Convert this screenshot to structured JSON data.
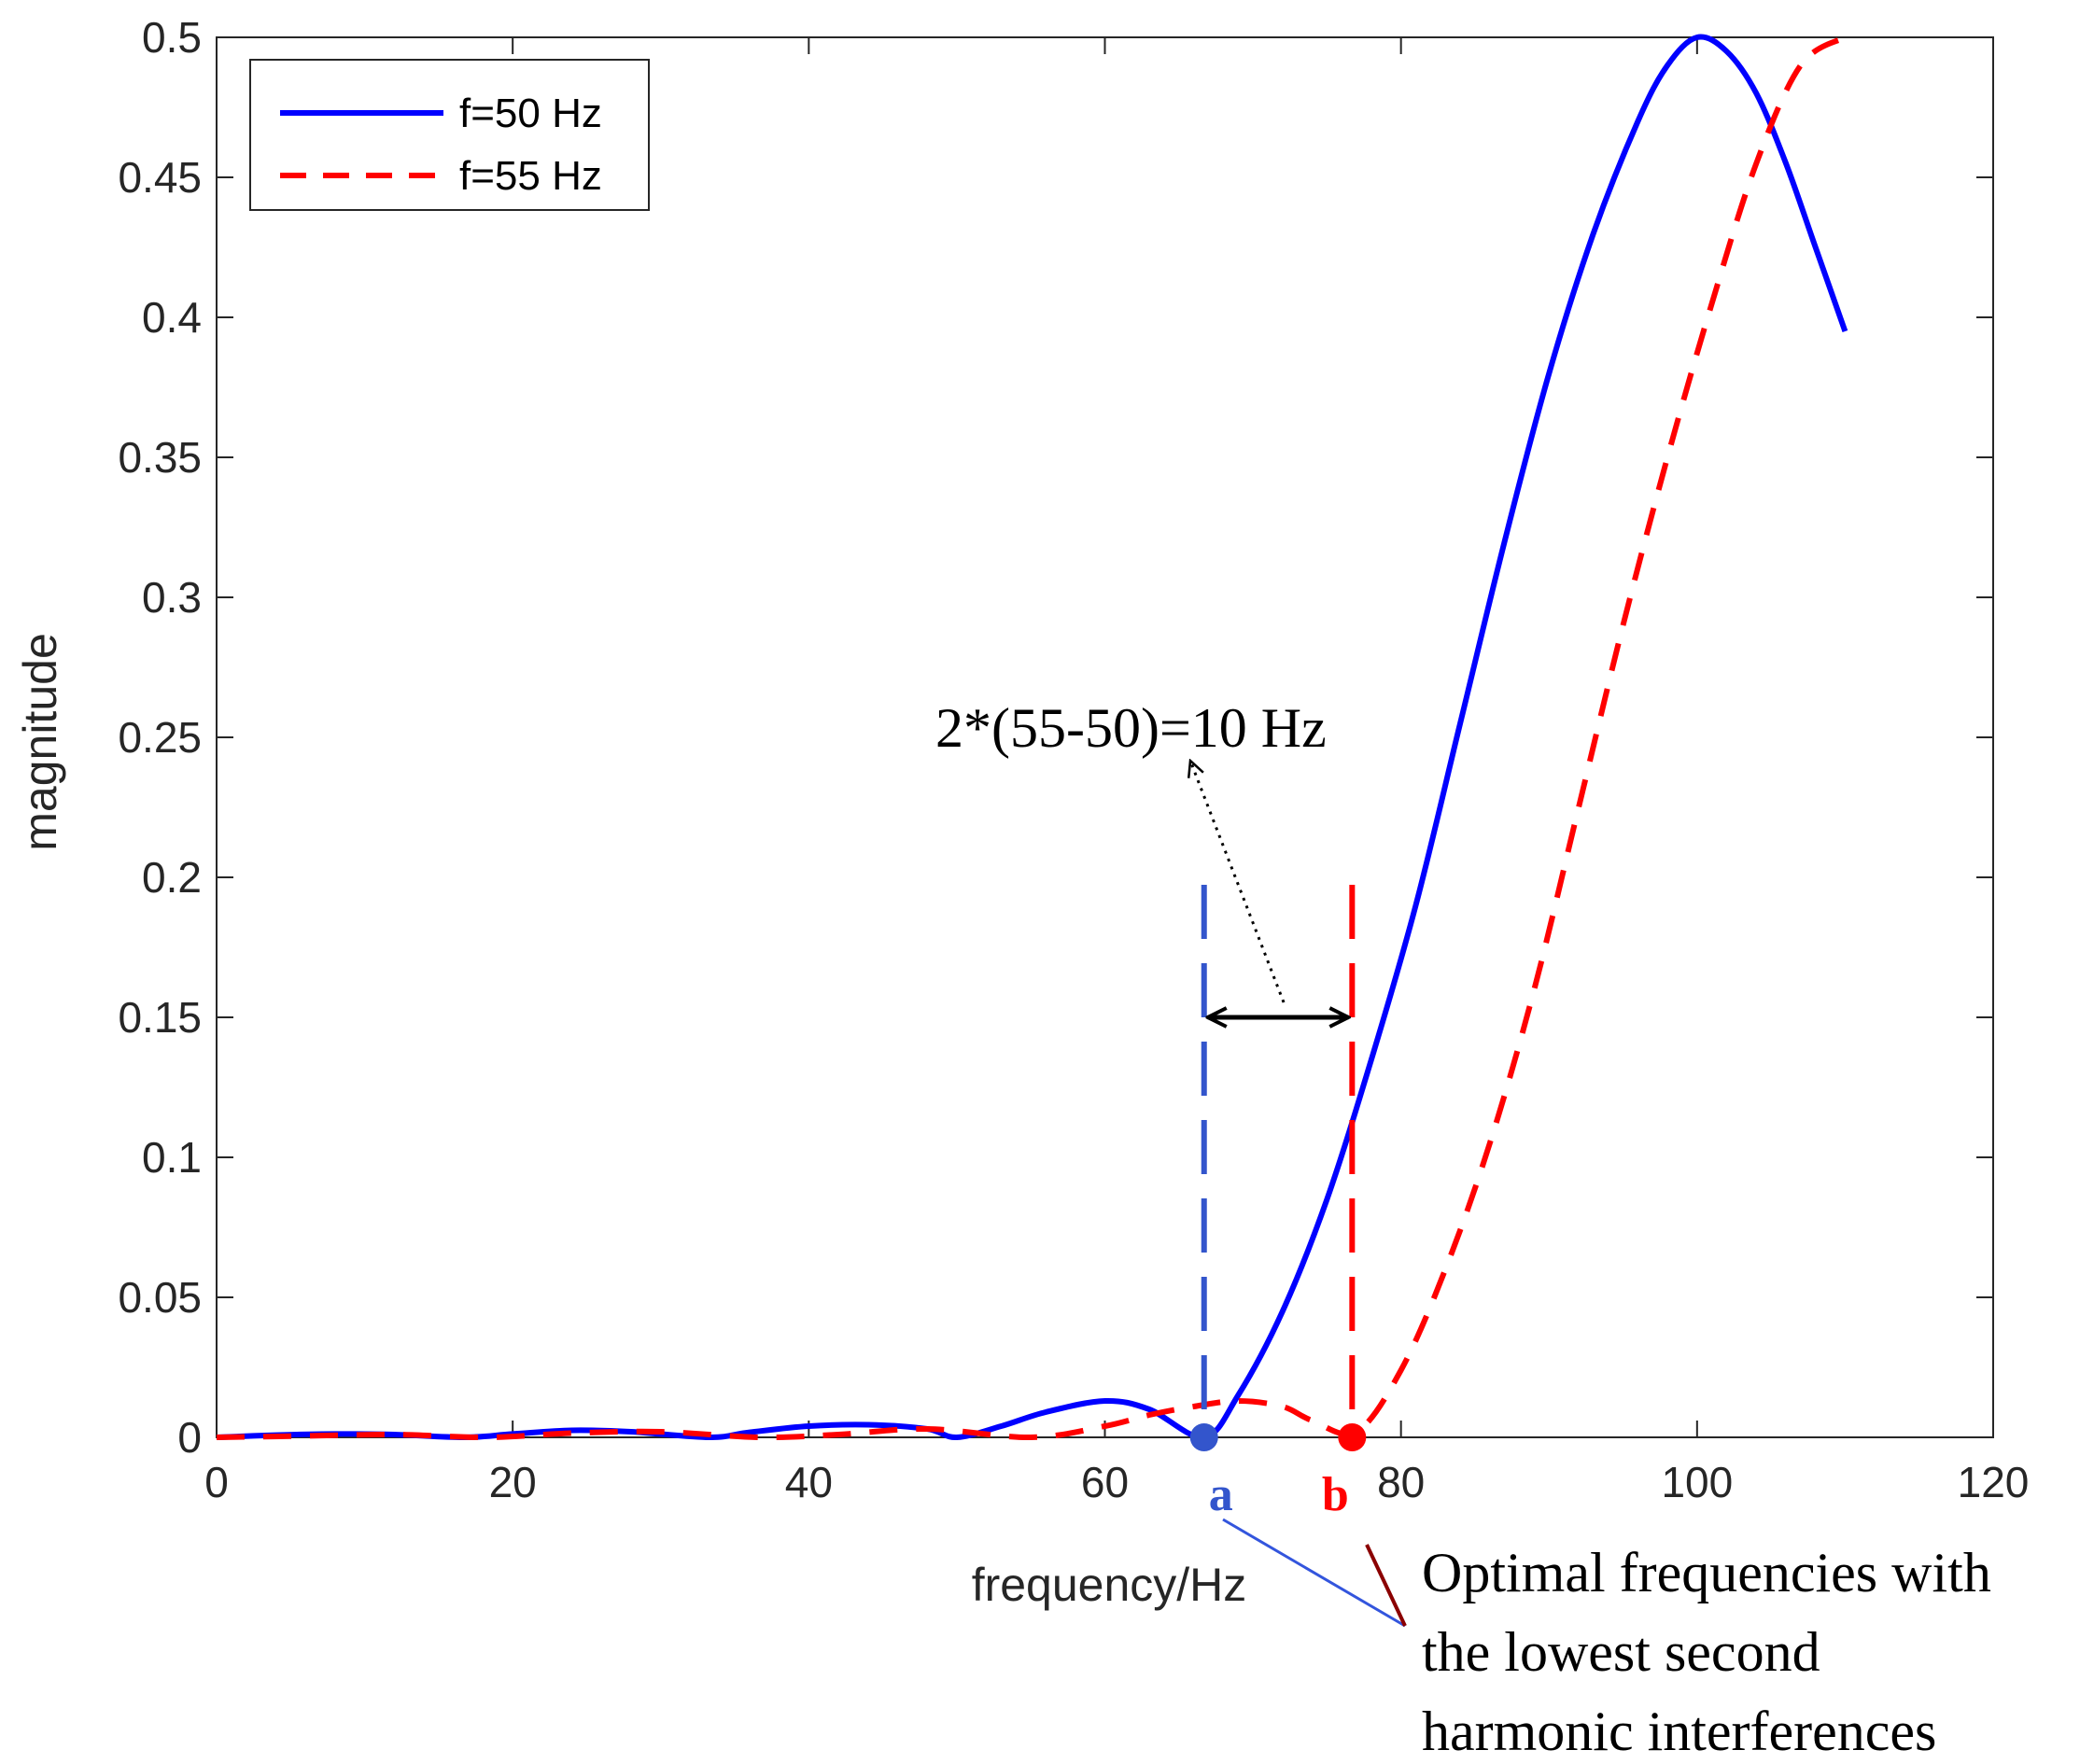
{
  "chart_data": {
    "type": "line",
    "title": "",
    "xlabel": "frequency/Hz",
    "ylabel": "magnitude",
    "xlim": [
      0,
      120
    ],
    "ylim": [
      0,
      0.5
    ],
    "xticks": [
      "0",
      "20",
      "40",
      "60",
      "80",
      "100",
      "120"
    ],
    "yticks": [
      "0",
      "0.05",
      "0.1",
      "0.15",
      "0.2",
      "0.25",
      "0.3",
      "0.35",
      "0.4",
      "0.45",
      "0.5"
    ],
    "grid": false,
    "legend_position": "top-left",
    "series": [
      {
        "name": "f=50 Hz",
        "color": "#0000ff",
        "style": "solid",
        "x": [
          0,
          4,
          8,
          12,
          16.7,
          20,
          24,
          28,
          33.3,
          36,
          40,
          44,
          48,
          50,
          53,
          56,
          60,
          63,
          66.7,
          69,
          72,
          75,
          78,
          81,
          84,
          87,
          90,
          93,
          96,
          98,
          100,
          102,
          104,
          106,
          108,
          110
        ],
        "values": [
          0,
          0.0008,
          0.0012,
          0.001,
          0,
          0.0012,
          0.0025,
          0.002,
          0,
          0.0018,
          0.004,
          0.0045,
          0.003,
          0,
          0.004,
          0.009,
          0.013,
          0.01,
          0,
          0.015,
          0.045,
          0.085,
          0.135,
          0.19,
          0.255,
          0.32,
          0.38,
          0.43,
          0.47,
          0.49,
          0.5,
          0.495,
          0.48,
          0.455,
          0.425,
          0.395
        ]
      },
      {
        "name": "f=55 Hz",
        "color": "#ff0000",
        "style": "dashed",
        "x": [
          0,
          6,
          12,
          18.3,
          24,
          30,
          36.7,
          42,
          48,
          55,
          60,
          63,
          66,
          69,
          72,
          74,
          77,
          80,
          83,
          86,
          89,
          92,
          95,
          98,
          101,
          104,
          107,
          110
        ],
        "values": [
          0,
          0.0005,
          0.001,
          0,
          0.0015,
          0.002,
          0,
          0.001,
          0.003,
          0,
          0.004,
          0.008,
          0.011,
          0.013,
          0.011,
          0.006,
          0.002,
          0.024,
          0.06,
          0.105,
          0.16,
          0.225,
          0.29,
          0.35,
          0.405,
          0.455,
          0.49,
          0.5
        ]
      }
    ],
    "markers": [
      {
        "label": "a",
        "x": 66.7,
        "y": 0,
        "color": "#3355cc"
      },
      {
        "label": "b",
        "x": 76.7,
        "y": 0,
        "color": "#ff0000"
      }
    ],
    "vlines": [
      {
        "x": 66.7,
        "y_top": 0.2,
        "color": "#3355cc"
      },
      {
        "x": 76.7,
        "y_top": 0.2,
        "color": "#ff0000"
      }
    ],
    "span": {
      "x1": 66.7,
      "x2": 76.7,
      "y": 0.15
    },
    "annotations": {
      "difference_text": "2*(55-50)=10 Hz",
      "note_line1": "Optimal frequencies with",
      "note_line2": "the lowest second",
      "note_line3": "harmonic interferences"
    }
  }
}
